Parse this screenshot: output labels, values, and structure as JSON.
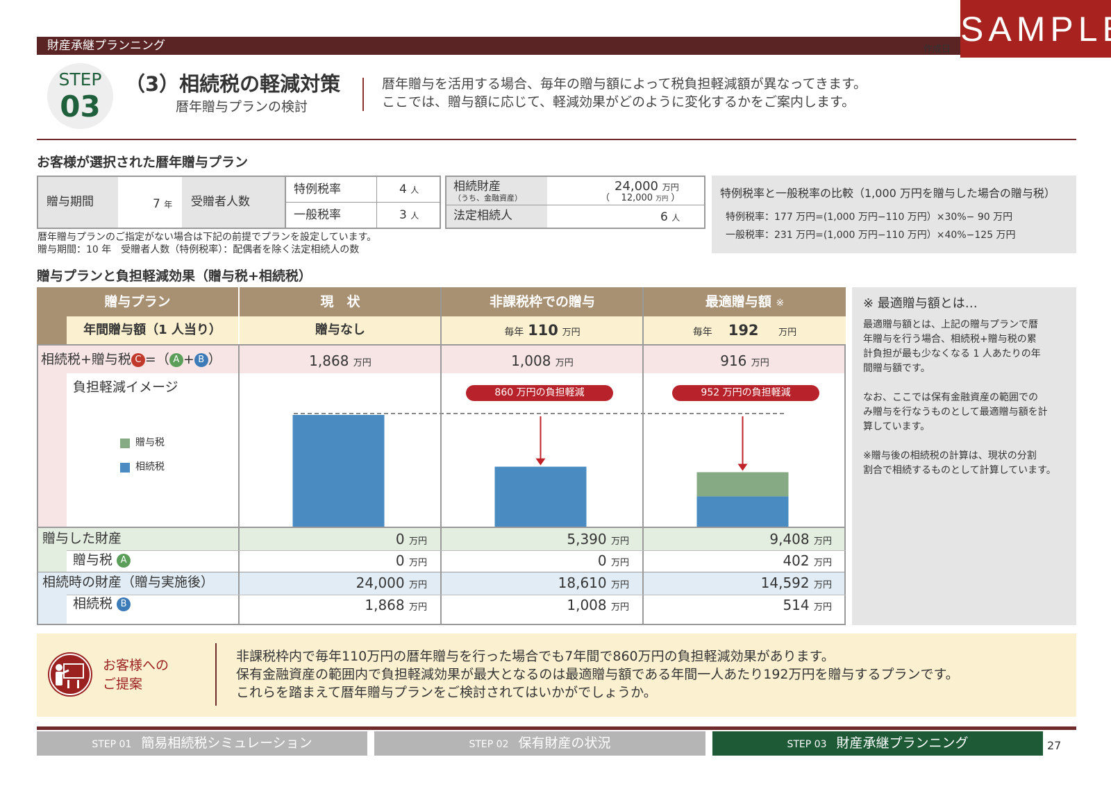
{
  "header": {
    "bar_title": "財産承継プランニング",
    "created_label": "作成日",
    "sample": "SAMPLE",
    "step_label": "STEP",
    "step_num": "03",
    "title": "（3）相続税の軽減対策",
    "subtitle": "暦年贈与プランの検討",
    "intro": [
      "暦年贈与を活用する場合、毎年の贈与額によって税負担軽減額が異なってきます。",
      "ここでは、贈与額に応じて、軽減効果がどのように変化するかをご案内します。"
    ]
  },
  "plan": {
    "section_title": "お客様が選択された暦年贈与プラン",
    "period_label": "贈与期間",
    "period_value": "7",
    "period_unit": "年",
    "recipients_label": "受贈者人数",
    "special_label": "特例税率",
    "special_value": "4",
    "general_label": "一般税率",
    "general_value": "3",
    "person_unit": "人",
    "estate_label": "相続財産",
    "estate_sub": "（うち、金融資産）",
    "estate_value": "24,000",
    "estate_unit": "万円",
    "financial_open": "（",
    "financial_value": "12,000",
    "financial_close": "）",
    "heirs_label": "法定相続人",
    "heirs_value": "6",
    "notes": [
      "暦年贈与プランのご指定がない場合は下記の前提でプランを設定しています。",
      "贈与期間：10 年　受贈者人数（特例税率）：配偶者を除く法定相続人の数"
    ],
    "compare_title": "特例税率と一般税率の比較（1,000 万円を贈与した場合の贈与税）",
    "compare_lines": [
      "特例税率：177 万円=(1,000 万円−110 万円）×30%−  90 万円",
      "一般税率：231 万円=(1,000 万円−110 万円）×40%−125 万円"
    ]
  },
  "table": {
    "section_title": "贈与プランと負担軽減効果（贈与税+相続税）",
    "head_plan": "贈与プラン",
    "head_annual": "年間贈与額（1 人当り）",
    "columns": [
      {
        "title": "現　状",
        "annual_prefix": "",
        "annual_value": "贈与なし",
        "annual_unit": ""
      },
      {
        "title": "非課税枠での贈与",
        "annual_prefix": "毎年",
        "annual_value": "110",
        "annual_unit": "万円"
      },
      {
        "title": "最適贈与額",
        "title_mark": "※",
        "annual_prefix": "毎年",
        "annual_value": "192",
        "annual_unit": "万円"
      }
    ],
    "total_label": "相続税+贈与税",
    "total_formula": [
      "=（",
      "+",
      "）"
    ],
    "circle_c": "C",
    "circle_a": "A",
    "circle_b": "B",
    "totals": [
      "1,868",
      "1,008",
      "916"
    ],
    "image_label": "負担軽減イメージ",
    "legend_gift": "贈与税",
    "legend_inherit": "相続税",
    "reductions": [
      "860 万円の負担軽減",
      "952 万円の負担軽減"
    ],
    "gifted_label": "贈与した財産",
    "gifted": [
      "0",
      "5,390",
      "9,408"
    ],
    "gift_tax_label": "贈与税",
    "gift_tax": [
      "0",
      "0",
      "402"
    ],
    "after_label": "相続時の財産（贈与実施後）",
    "after": [
      "24,000",
      "18,610",
      "14,592"
    ],
    "inherit_tax_label": "相続税",
    "inherit_tax": [
      "1,868",
      "1,008",
      "514"
    ],
    "unit": "万円",
    "colors": {
      "gift": "#86aa84",
      "inherit": "#4a8cc2"
    }
  },
  "chart_data": {
    "type": "bar",
    "stacked": true,
    "categories": [
      "現　状",
      "非課税枠での贈与",
      "最適贈与額"
    ],
    "series": [
      {
        "name": "相続税",
        "values": [
          1868,
          1008,
          514
        ]
      },
      {
        "name": "贈与税",
        "values": [
          0,
          0,
          402
        ]
      }
    ]
  },
  "side_note": {
    "title": "※ 最適贈与額とは…",
    "p1": [
      "最適贈与額とは、上記の贈与プランで暦",
      "年贈与を行う場合、相続税+贈与税の累",
      "計負担が最も少なくなる 1 人あたりの年",
      "間贈与額です。"
    ],
    "p2": [
      "なお、ここでは保有金融資産の範囲での",
      "み贈与を行なうものとして最適贈与額を計",
      "算しています。"
    ],
    "p3": [
      "※贈与後の相続税の計算は、現状の分割",
      "割合で相続するものとして計算しています。"
    ]
  },
  "proposal": {
    "label": [
      "お客様への",
      "ご提案"
    ],
    "lines": [
      "非課税枠内で毎年110万円の暦年贈与を行った場合でも7年間で860万円の負担軽減効果があります。",
      "保有金融資産の範囲内で負担軽減効果が最大となるのは最適贈与額である年間一人あたり192万円を贈与するプランです。",
      "これらを踏まえて暦年贈与プランをご検討されてはいかがでしょうか。"
    ]
  },
  "footer": {
    "tabs": [
      {
        "step": "STEP 01",
        "label": "簡易相続税シミュレーション"
      },
      {
        "step": "STEP 02",
        "label": "保有財産の状況"
      },
      {
        "step": "STEP 03",
        "label": "財産承継プランニング"
      }
    ],
    "page": "27"
  }
}
